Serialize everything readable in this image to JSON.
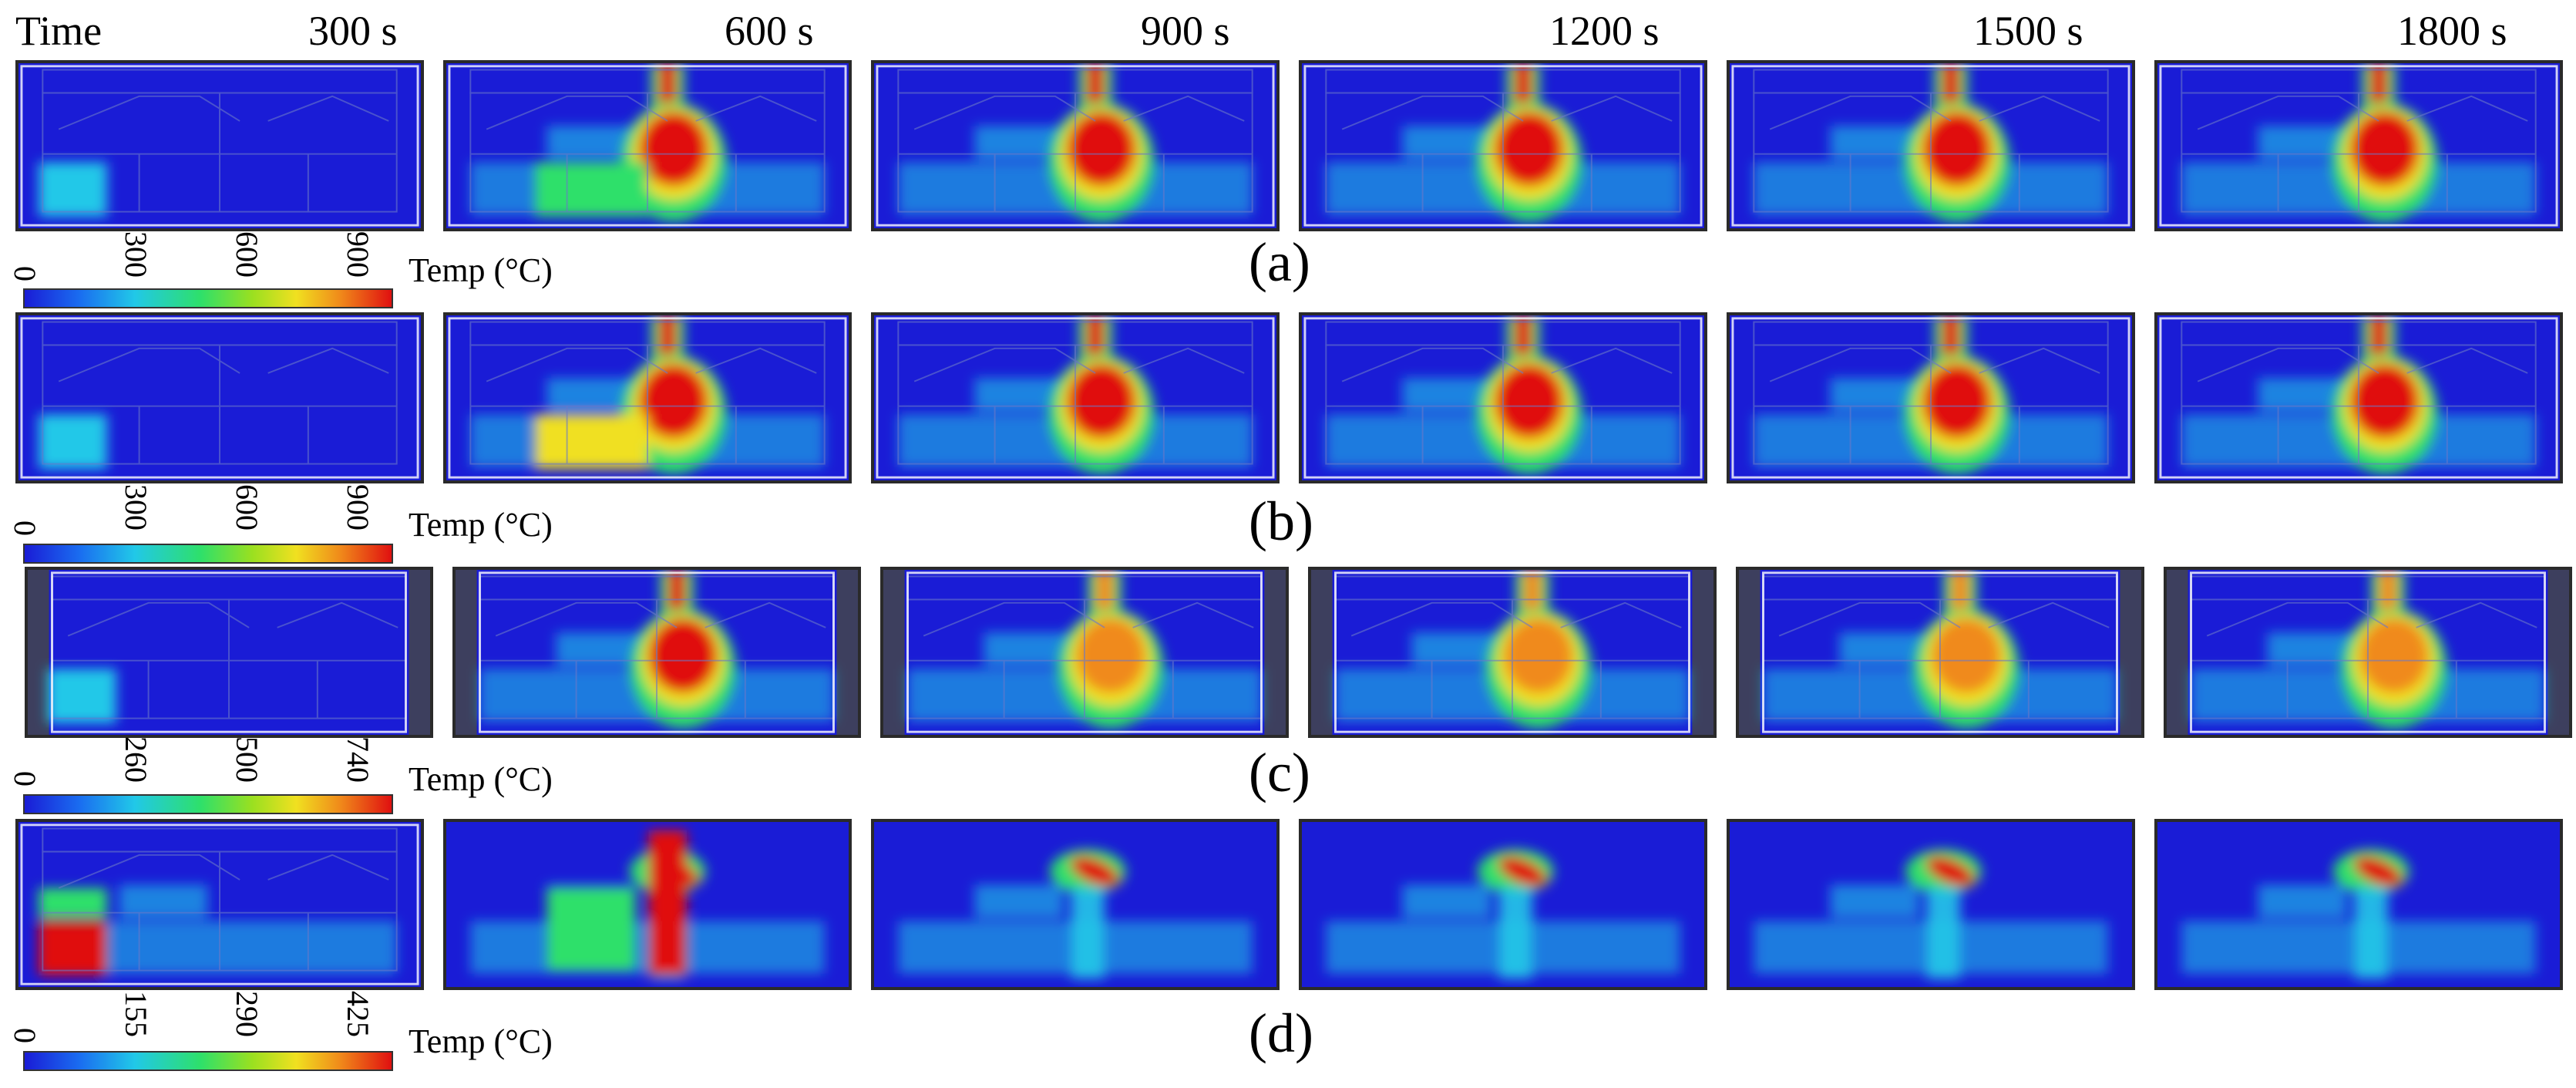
{
  "header": {
    "time_label": "Time",
    "times": [
      "300 s",
      "600 s",
      "900 s",
      "1200 s",
      "1500 s",
      "1800 s"
    ]
  },
  "rows": [
    {
      "label": "(a)",
      "temp_label": "Temp (°C)",
      "ticks": [
        "0",
        "300",
        "600",
        "900"
      ]
    },
    {
      "label": "(b)",
      "temp_label": "Temp (°C)",
      "ticks": [
        "0",
        "300",
        "600",
        "900"
      ]
    },
    {
      "label": "(c)",
      "temp_label": "Temp (°C)",
      "ticks": [
        "0",
        "260",
        "500",
        "740"
      ]
    },
    {
      "label": "(d)",
      "temp_label": "Temp (°C)",
      "ticks": [
        "0",
        "155",
        "290",
        "425"
      ]
    }
  ],
  "colormap": [
    "#1a1cd6",
    "#1a6df0",
    "#21c8e8",
    "#2ee06a",
    "#9ae020",
    "#f0e020",
    "#f08a1a",
    "#e01010"
  ]
}
